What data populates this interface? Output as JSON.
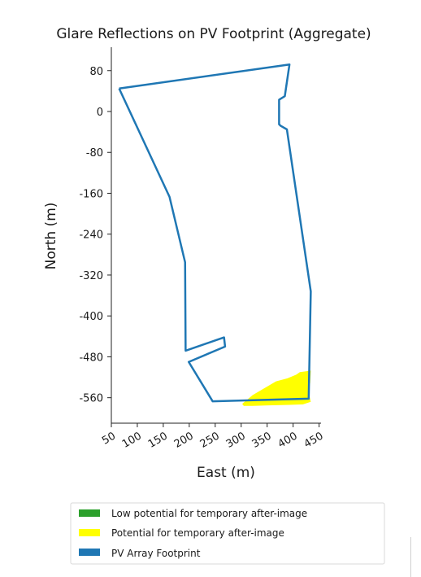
{
  "chart_data": {
    "type": "line",
    "title": "Glare Reflections on PV Footprint (Aggregate)",
    "xlabel": "East (m)",
    "ylabel": "North (m)",
    "xlim": [
      50,
      450
    ],
    "ylim": [
      -600,
      120
    ],
    "xticks": [
      50,
      100,
      150,
      200,
      250,
      300,
      350,
      400,
      450
    ],
    "yticks": [
      80,
      0,
      -80,
      -160,
      -240,
      -320,
      -400,
      -480,
      -560
    ],
    "grid": false,
    "series": [
      {
        "name": "PV Array Footprint",
        "color": "#1f77b4",
        "x": [
          65,
          393,
          384,
          373,
          373,
          376,
          388,
          434,
          430,
          245,
          199,
          269,
          267,
          193,
          192,
          162,
          65
        ],
        "y": [
          45,
          92,
          30,
          23,
          -25,
          -28,
          -35,
          -352,
          -562,
          -567,
          -490,
          -460,
          -442,
          -468,
          -295,
          -167,
          45
        ]
      },
      {
        "name": "Potential for temporary after-image",
        "color": "#ffff00",
        "type": "area",
        "x": [
          302,
          322,
          347,
          367,
          389,
          406,
          413,
          434,
          433,
          430,
          434,
          419,
          392,
          352,
          322,
          305
        ],
        "y": [
          -572,
          -555,
          -540,
          -528,
          -522,
          -515,
          -510,
          -507,
          -530,
          -551,
          -568,
          -573,
          -574,
          -575,
          -576,
          -576
        ]
      }
    ],
    "legend": {
      "placement": "bottom-center",
      "entries": [
        {
          "label": "Low potential for temporary after-image",
          "color": "#2ca02c"
        },
        {
          "label": "Potential for temporary after-image",
          "color": "#ffff00"
        },
        {
          "label": "PV Array Footprint",
          "color": "#1f77b4"
        }
      ]
    }
  }
}
